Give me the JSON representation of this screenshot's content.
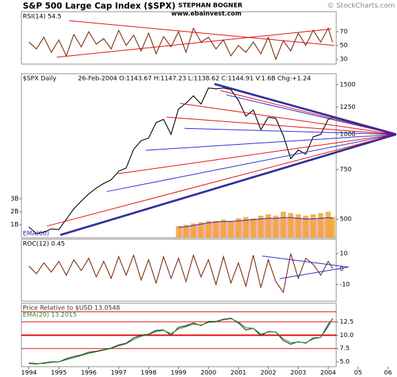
{
  "header": {
    "title": "S&P 500 Large Cap Index ($SPX)",
    "author": "STEPHAN BOGNER",
    "copyright": "© StockCharts.com",
    "website": "www.ebainvest.com"
  },
  "chart_data": [
    {
      "type": "line",
      "label": "RSI(14) 54.5",
      "xlim": [
        1993.75,
        2006.3
      ],
      "x": [
        1994,
        1994.25,
        1994.5,
        1994.75,
        1995,
        1995.25,
        1995.5,
        1995.75,
        1996,
        1996.25,
        1996.5,
        1996.75,
        1997,
        1997.25,
        1997.5,
        1997.75,
        1998,
        1998.25,
        1998.5,
        1998.75,
        1999,
        1999.25,
        1999.5,
        1999.75,
        2000,
        2000.25,
        2000.5,
        2000.75,
        2001,
        2001.25,
        2001.5,
        2001.75,
        2002,
        2002.25,
        2002.5,
        2002.75,
        2003,
        2003.25,
        2003.5,
        2003.75,
        2004,
        2004.15
      ],
      "series": [
        {
          "color": "#7a3010",
          "values": [
            55,
            45,
            62,
            40,
            58,
            35,
            66,
            48,
            70,
            52,
            60,
            45,
            72,
            50,
            65,
            42,
            68,
            38,
            63,
            48,
            70,
            40,
            75,
            55,
            62,
            45,
            58,
            35,
            50,
            40,
            55,
            38,
            62,
            30,
            57,
            42,
            68,
            50,
            72,
            55,
            75,
            54.5
          ]
        }
      ],
      "ylim": [
        23,
        99
      ],
      "yticks": [
        30,
        50,
        70
      ],
      "trendlines": [
        {
          "color": "#e00000",
          "from": [
            1994.93,
            33
          ],
          "to": [
            2004.11,
            74
          ]
        },
        {
          "color": "#e00000",
          "from": [
            1995.34,
            86
          ],
          "to": [
            2004.22,
            50
          ]
        }
      ]
    },
    {
      "type": "line",
      "label": "$SPX Daily",
      "info": "26-Feb-2004  O:1143.67  H:1147.23  L:1138.62  C:1144.91  V:1.6B  Chg:+1.24",
      "xlim": [
        1993.75,
        2006.3
      ],
      "x": [
        1994,
        1994.25,
        1994.5,
        1994.75,
        1995,
        1995.25,
        1995.5,
        1995.75,
        1996,
        1996.25,
        1996.5,
        1996.75,
        1997,
        1997.25,
        1997.5,
        1997.75,
        1998,
        1998.25,
        1998.5,
        1998.75,
        1999,
        1999.25,
        1999.5,
        1999.75,
        2000,
        2000.25,
        2000.5,
        2000.75,
        2001,
        2001.25,
        2001.5,
        2001.75,
        2002,
        2002.25,
        2002.5,
        2002.75,
        2003,
        2003.25,
        2003.5,
        2003.75,
        2004,
        2004.15
      ],
      "series": [
        {
          "color": "#000000",
          "values": [
            470,
            445,
            450,
            462,
            460,
            500,
            545,
            580,
            615,
            645,
            670,
            690,
            740,
            760,
            885,
            950,
            970,
            1100,
            1130,
            1000,
            1230,
            1290,
            1370,
            1280,
            1460,
            1450,
            1460,
            1440,
            1320,
            1160,
            1220,
            1040,
            1150,
            1140,
            990,
            820,
            880,
            850,
            980,
            1000,
            1130,
            1144.91
          ]
        }
      ],
      "log_scale": true,
      "ylim": [
        430,
        1640
      ],
      "yticks": [
        500,
        750,
        1000,
        1250,
        1500
      ],
      "volume": {
        "color": "#f0a830",
        "ema_color": "#2020c0",
        "ema_fill": "#f4b0b8",
        "ema_label": "EMA(60)",
        "values": [
          null,
          null,
          null,
          null,
          null,
          null,
          null,
          null,
          null,
          null,
          null,
          null,
          null,
          null,
          null,
          null,
          null,
          null,
          null,
          null,
          900000000,
          1000000000,
          1100000000,
          1200000000,
          1300000000,
          1300000000,
          1400000000,
          1300000000,
          1500000000,
          1600000000,
          1500000000,
          1700000000,
          1800000000,
          1700000000,
          2000000000,
          1900000000,
          1800000000,
          1700000000,
          1800000000,
          1900000000,
          2000000000,
          1600000000
        ],
        "ema_values": [
          null,
          null,
          null,
          null,
          null,
          null,
          null,
          null,
          null,
          null,
          null,
          null,
          null,
          null,
          null,
          null,
          null,
          null,
          null,
          null,
          800000000,
          850000000,
          950000000,
          1050000000,
          1150000000,
          1200000000,
          1250000000,
          1250000000,
          1300000000,
          1350000000,
          1400000000,
          1450000000,
          1500000000,
          1500000000,
          1550000000,
          1550000000,
          1500000000,
          1450000000,
          1450000000,
          1500000000,
          1550000000,
          1500000000
        ],
        "ylim": [
          0,
          12600000000
        ],
        "yticks": [
          {
            "value": 1000000000,
            "label": "1B"
          },
          {
            "value": 2000000000,
            "label": "2B"
          },
          {
            "value": 3000000000,
            "label": "3B"
          }
        ]
      },
      "trendlines": [
        {
          "color": "#3030a0",
          "linewidth": 3,
          "from": [
            1995.05,
            440
          ],
          "to": [
            2006.27,
            1000
          ]
        },
        {
          "color": "#3030a0",
          "linewidth": 3,
          "from": [
            2000.2,
            1509
          ],
          "to": [
            2006.27,
            1000
          ]
        },
        {
          "color": "#e00000",
          "from": [
            1994.6,
            473
          ],
          "to": [
            2006.27,
            1000
          ]
        },
        {
          "color": "#2020d0",
          "from": [
            1996.6,
            627
          ],
          "to": [
            2006.27,
            1000
          ]
        },
        {
          "color": "#e00000",
          "from": [
            1996.96,
            725
          ],
          "to": [
            2006.27,
            1000
          ]
        },
        {
          "color": "#2020d0",
          "from": [
            1997.9,
            878
          ],
          "to": [
            2006.27,
            1000
          ]
        },
        {
          "color": "#e00000",
          "from": [
            1998.6,
            1151
          ],
          "to": [
            2006.27,
            1000
          ]
        },
        {
          "color": "#e00000",
          "from": [
            1999.05,
            1288
          ],
          "to": [
            2006.27,
            1000
          ]
        },
        {
          "color": "#2020d0",
          "from": [
            1999.2,
            1050
          ],
          "to": [
            2006.27,
            1000
          ]
        },
        {
          "color": "#e00000",
          "from": [
            2000.4,
            1430
          ],
          "to": [
            2006.27,
            1000
          ]
        },
        {
          "color": "#2020d0",
          "from": [
            2000.6,
            1380
          ],
          "to": [
            2006.27,
            1000
          ]
        }
      ]
    },
    {
      "type": "line",
      "label": "ROC(12) 0.45",
      "xlim": [
        1993.75,
        2006.3
      ],
      "x": [
        1994,
        1994.25,
        1994.5,
        1994.75,
        1995,
        1995.25,
        1995.5,
        1995.75,
        1996,
        1996.25,
        1996.5,
        1996.75,
        1997,
        1997.25,
        1997.5,
        1997.75,
        1998,
        1998.25,
        1998.5,
        1998.75,
        1999,
        1999.25,
        1999.5,
        1999.75,
        2000,
        2000.25,
        2000.5,
        2000.75,
        2001,
        2001.25,
        2001.5,
        2001.75,
        2002,
        2002.25,
        2002.5,
        2002.75,
        2003,
        2003.25,
        2003.5,
        2003.75,
        2004,
        2004.15
      ],
      "series": [
        {
          "color": "#7a3010",
          "values": [
            2,
            -3,
            4,
            -2,
            5,
            -4,
            6,
            -1,
            7,
            -5,
            5,
            -6,
            8,
            -4,
            9,
            -7,
            6,
            -9,
            8,
            -6,
            7,
            -8,
            9,
            -5,
            6,
            -10,
            8,
            -9,
            4,
            -11,
            9,
            -12,
            6,
            -8,
            -15,
            10,
            -6,
            7,
            3,
            -4,
            5,
            0.45
          ]
        }
      ],
      "ylim": [
        -20.7,
        19.3
      ],
      "yticks": [
        -10,
        0,
        10
      ],
      "trendlines": [
        {
          "color": "#2020d0",
          "from": [
            2001.8,
            8.4
          ],
          "to": [
            2004.68,
            1.3
          ]
        },
        {
          "color": "#2020d0",
          "from": [
            2002.38,
            -6.2
          ],
          "to": [
            2004.68,
            1.3
          ]
        }
      ]
    },
    {
      "type": "line",
      "xlim": [
        1993.75,
        2006.3
      ],
      "x": [
        1994,
        1994.25,
        1994.5,
        1994.75,
        1995,
        1995.25,
        1995.5,
        1995.75,
        1996,
        1996.25,
        1996.5,
        1996.75,
        1997,
        1997.25,
        1997.5,
        1997.75,
        1998,
        1998.25,
        1998.5,
        1998.75,
        1999,
        1999.25,
        1999.5,
        1999.75,
        2000,
        2000.25,
        2000.5,
        2000.75,
        2001,
        2001.25,
        2001.5,
        2001.75,
        2002,
        2002.25,
        2002.5,
        2002.75,
        2003,
        2003.25,
        2003.5,
        2003.75,
        2004,
        2004.15
      ],
      "series": [
        {
          "name": "Price Relative to $USD  13.0548",
          "color": "#333333",
          "values": [
            4.7,
            4.6,
            4.8,
            5.0,
            5.0,
            5.6,
            6.0,
            6.3,
            6.8,
            7.0,
            7.3,
            7.6,
            8.2,
            8.5,
            9.5,
            10.0,
            10.2,
            10.9,
            11.0,
            10.0,
            11.5,
            11.8,
            12.3,
            11.8,
            12.6,
            12.6,
            13.0,
            13.2,
            12.3,
            11.0,
            11.3,
            9.9,
            10.7,
            10.6,
            9.0,
            8.3,
            8.8,
            8.5,
            9.5,
            9.6,
            12.0,
            13.0548
          ]
        },
        {
          "name": "EMA(20) 13.2015",
          "color": "#2e8b2e",
          "values": [
            4.8,
            4.7,
            4.7,
            4.9,
            5.0,
            5.4,
            5.8,
            6.2,
            6.6,
            6.9,
            7.2,
            7.5,
            8.0,
            8.4,
            9.2,
            9.8,
            10.1,
            10.7,
            10.9,
            10.3,
            11.2,
            11.6,
            12.1,
            11.9,
            12.4,
            12.5,
            12.9,
            13.1,
            12.5,
            11.4,
            11.3,
            10.2,
            10.6,
            10.6,
            9.3,
            8.6,
            8.7,
            8.6,
            9.3,
            9.6,
            11.6,
            13.2015
          ]
        }
      ],
      "ylim": [
        4.1,
        16
      ],
      "yticks": [
        {
          "value": 5,
          "label": "5.0"
        },
        7.5,
        {
          "value": 10,
          "label": "10.0"
        },
        12.5
      ],
      "hlines": [
        {
          "value": 14.4,
          "color": "#e00000"
        },
        {
          "value": 12.5,
          "color": "#e00000"
        },
        {
          "value": 10,
          "color": "#e00000",
          "linewidth": 2
        },
        {
          "value": 7.5,
          "color": "#e00000"
        }
      ],
      "xticks": [
        1994,
        1995,
        1996,
        1997,
        1998,
        1999,
        2000,
        2001,
        2002,
        2003,
        2004,
        {
          "value": 2005,
          "label": "05"
        },
        {
          "value": 2006,
          "label": "06"
        }
      ]
    }
  ]
}
